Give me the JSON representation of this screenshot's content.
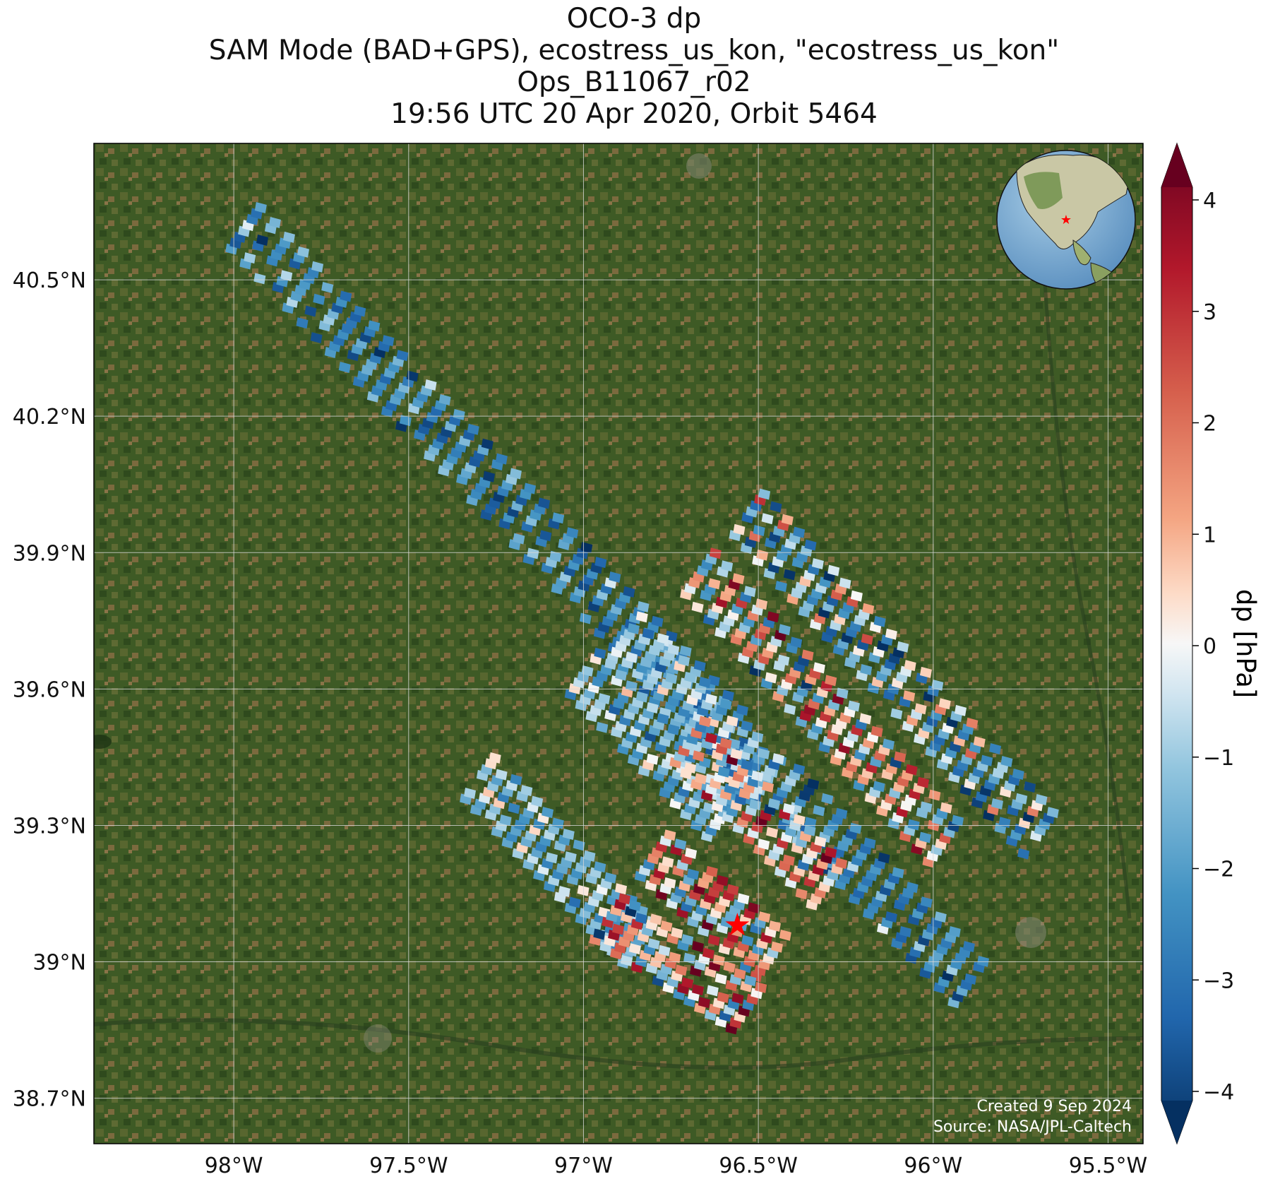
{
  "title": {
    "line1": "OCO-3 dp",
    "line2": "SAM Mode (BAD+GPS), ecostress_us_kon, \"ecostress_us_kon\"",
    "line3": "Ops_B11067_r02",
    "line4": "19:56 UTC 20 Apr 2020, Orbit 5464"
  },
  "map": {
    "x_ticks": [
      "98°W",
      "97.5°W",
      "97°W",
      "96.5°W",
      "96°W",
      "95.5°W"
    ],
    "y_ticks": [
      "40.5°N",
      "40.2°N",
      "39.9°N",
      "39.6°N",
      "39.3°N",
      "39°N",
      "38.7°N"
    ],
    "lon_range": [
      -98.4,
      -95.4
    ],
    "lat_range": [
      38.6,
      40.8
    ],
    "target_marker": {
      "lon": -96.56,
      "lat": 39.08,
      "color": "#ff0000"
    },
    "basemap_color": "#3f5a24",
    "footer_created": "Created 9 Sep 2024",
    "footer_source": "Source: NASA/JPL-Caltech"
  },
  "colorbar": {
    "label": "dp [hPa]",
    "ticks": [
      "4",
      "3",
      "2",
      "1",
      "0",
      "−1",
      "−2",
      "−3",
      "−4"
    ],
    "range": [
      -4,
      4
    ],
    "colormap": "RdBu_r",
    "extend": "both"
  },
  "inset_globe": {
    "marker_color": "#ff0000"
  }
}
